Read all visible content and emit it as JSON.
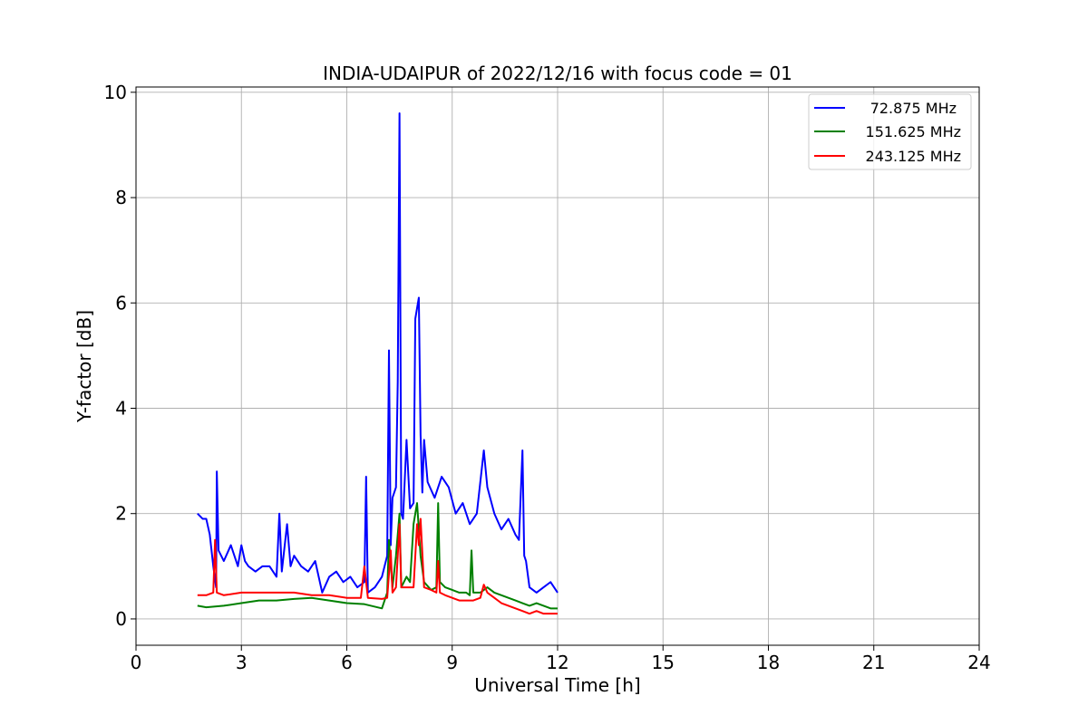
{
  "chart_data": {
    "type": "line",
    "title": "INDIA-UDAIPUR of 2022/12/16 with focus code = 01",
    "xlabel": "Universal Time [h]",
    "ylabel": "Y-factor [dB]",
    "xlim": [
      0,
      24
    ],
    "ylim": [
      -0.5,
      10.1
    ],
    "xticks": [
      0,
      3,
      6,
      9,
      12,
      15,
      18,
      21,
      24
    ],
    "yticks": [
      0,
      2,
      4,
      6,
      8,
      10
    ],
    "grid": true,
    "legend_position": "top-right",
    "series": [
      {
        "name": "72.875 MHz",
        "color": "#0000ff",
        "x": [
          1.75,
          1.9,
          2.0,
          2.1,
          2.2,
          2.28,
          2.3,
          2.35,
          2.5,
          2.7,
          2.9,
          3.0,
          3.1,
          3.2,
          3.4,
          3.6,
          3.8,
          4.0,
          4.08,
          4.15,
          4.3,
          4.4,
          4.5,
          4.7,
          4.9,
          5.1,
          5.3,
          5.5,
          5.7,
          5.9,
          6.1,
          6.3,
          6.5,
          6.55,
          6.6,
          6.8,
          7.0,
          7.15,
          7.2,
          7.25,
          7.3,
          7.4,
          7.45,
          7.5,
          7.55,
          7.6,
          7.7,
          7.8,
          7.9,
          7.95,
          8.0,
          8.05,
          8.1,
          8.15,
          8.2,
          8.3,
          8.5,
          8.7,
          8.9,
          9.1,
          9.3,
          9.5,
          9.7,
          9.9,
          10.0,
          10.2,
          10.4,
          10.6,
          10.8,
          10.9,
          11.0,
          11.05,
          11.1,
          11.2,
          11.4,
          11.6,
          11.8,
          12.0
        ],
        "y": [
          2.0,
          1.9,
          1.9,
          1.6,
          1.0,
          0.6,
          2.8,
          1.3,
          1.1,
          1.4,
          1.0,
          1.4,
          1.1,
          1.0,
          0.9,
          1.0,
          1.0,
          0.8,
          2.0,
          0.9,
          1.8,
          1.0,
          1.2,
          1.0,
          0.9,
          1.1,
          0.5,
          0.8,
          0.9,
          0.7,
          0.8,
          0.6,
          0.7,
          2.7,
          0.5,
          0.6,
          0.8,
          1.2,
          5.1,
          1.4,
          2.3,
          2.5,
          4.5,
          9.6,
          2.0,
          1.9,
          3.4,
          2.1,
          2.2,
          5.7,
          5.9,
          6.1,
          3.5,
          2.4,
          3.4,
          2.6,
          2.3,
          2.7,
          2.5,
          2.0,
          2.2,
          1.8,
          2.0,
          3.2,
          2.5,
          2.0,
          1.7,
          1.9,
          1.6,
          1.5,
          3.2,
          1.2,
          1.1,
          0.6,
          0.5,
          0.6,
          0.7,
          0.5
        ]
      },
      {
        "name": "151.625 MHz",
        "color": "#008000",
        "x": [
          1.75,
          2.0,
          2.5,
          3.0,
          3.5,
          4.0,
          4.5,
          5.0,
          5.5,
          6.0,
          6.5,
          7.0,
          7.15,
          7.2,
          7.3,
          7.4,
          7.5,
          7.55,
          7.7,
          7.8,
          7.9,
          8.0,
          8.1,
          8.2,
          8.4,
          8.55,
          8.6,
          8.65,
          8.8,
          9.0,
          9.2,
          9.4,
          9.5,
          9.55,
          9.6,
          9.8,
          10.0,
          10.2,
          10.4,
          10.6,
          10.8,
          11.0,
          11.2,
          11.4,
          11.6,
          11.8,
          12.0
        ],
        "y": [
          0.25,
          0.22,
          0.25,
          0.3,
          0.35,
          0.35,
          0.38,
          0.4,
          0.35,
          0.3,
          0.28,
          0.2,
          0.5,
          1.5,
          0.6,
          1.2,
          2.0,
          0.6,
          0.8,
          0.7,
          1.8,
          2.2,
          1.2,
          0.7,
          0.55,
          0.6,
          2.2,
          0.7,
          0.6,
          0.55,
          0.5,
          0.5,
          0.45,
          1.3,
          0.5,
          0.5,
          0.6,
          0.5,
          0.45,
          0.4,
          0.35,
          0.3,
          0.25,
          0.3,
          0.25,
          0.2,
          0.2
        ]
      },
      {
        "name": "243.125 MHz",
        "color": "#ff0000",
        "x": [
          1.75,
          2.0,
          2.2,
          2.25,
          2.3,
          2.5,
          3.0,
          3.5,
          4.0,
          4.5,
          5.0,
          5.5,
          6.0,
          6.4,
          6.5,
          6.6,
          7.0,
          7.15,
          7.25,
          7.3,
          7.4,
          7.5,
          7.55,
          7.7,
          7.9,
          8.0,
          8.05,
          8.1,
          8.2,
          8.4,
          8.55,
          8.6,
          8.65,
          8.8,
          9.0,
          9.2,
          9.4,
          9.6,
          9.8,
          9.9,
          10.0,
          10.2,
          10.4,
          10.6,
          10.8,
          11.0,
          11.2,
          11.4,
          11.6,
          11.8,
          12.0
        ],
        "y": [
          0.45,
          0.45,
          0.5,
          1.5,
          0.5,
          0.45,
          0.5,
          0.5,
          0.5,
          0.5,
          0.45,
          0.45,
          0.4,
          0.4,
          1.0,
          0.4,
          0.38,
          0.4,
          1.3,
          0.5,
          0.6,
          1.8,
          0.6,
          0.6,
          0.6,
          1.8,
          1.4,
          1.9,
          0.6,
          0.55,
          0.5,
          1.1,
          0.5,
          0.45,
          0.4,
          0.35,
          0.35,
          0.35,
          0.4,
          0.65,
          0.5,
          0.4,
          0.3,
          0.25,
          0.2,
          0.15,
          0.1,
          0.15,
          0.1,
          0.1,
          0.1
        ]
      }
    ]
  }
}
